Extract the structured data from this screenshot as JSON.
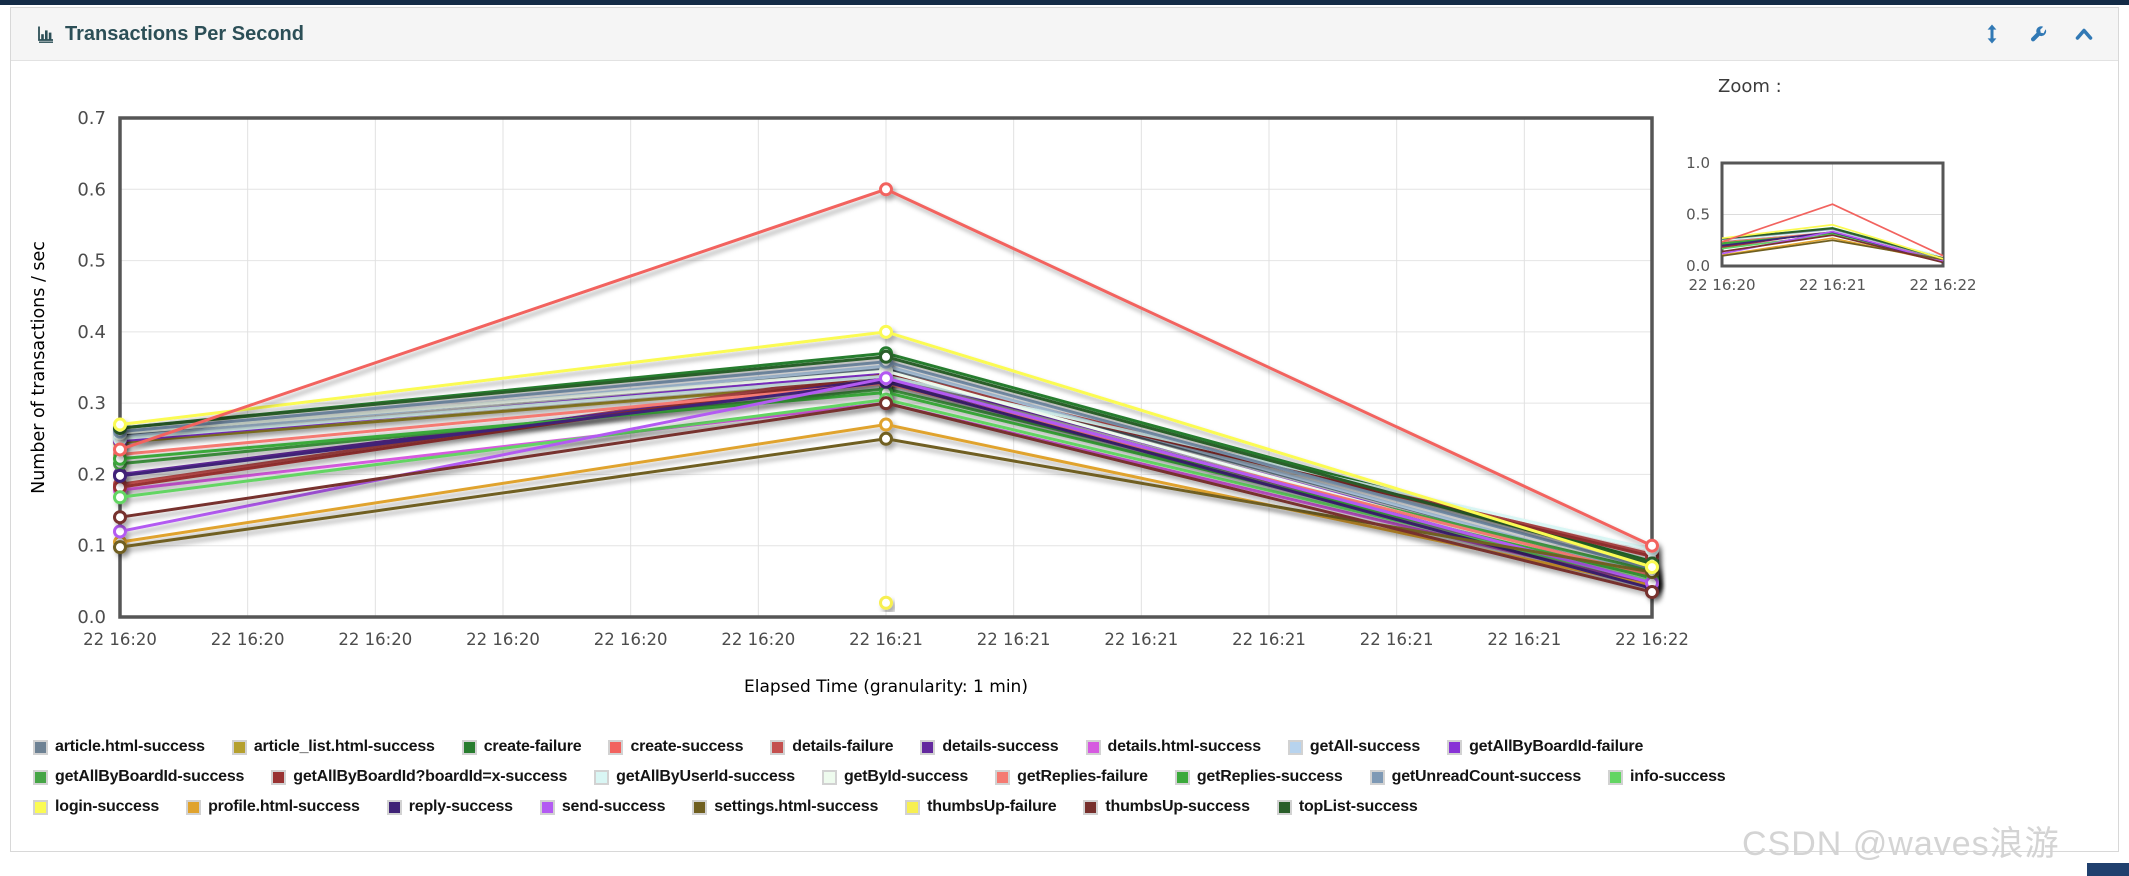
{
  "header": {
    "title": "Transactions Per Second"
  },
  "zoom_panel": {
    "label": "Zoom :",
    "ylim": [
      0,
      1.0
    ],
    "y_ticks": [
      "0.0",
      "0.5",
      "1.0"
    ],
    "x_tick_labels": [
      "22 16:20",
      "22 16:21",
      "22 16:22"
    ]
  },
  "chart_data": {
    "type": "line",
    "title": "Transactions Per Second",
    "xlabel": "Elapsed Time (granularity: 1 min)",
    "ylabel": "Number of transactions / sec",
    "ylim": [
      0,
      0.7
    ],
    "y_ticks": [
      "0.0",
      "0.1",
      "0.2",
      "0.3",
      "0.4",
      "0.5",
      "0.6",
      "0.7"
    ],
    "x_tick_labels": [
      "22 16:20",
      "22 16:20",
      "22 16:20",
      "22 16:20",
      "22 16:20",
      "22 16:20",
      "22 16:21",
      "22 16:21",
      "22 16:21",
      "22 16:21",
      "22 16:21",
      "22 16:21",
      "22 16:22"
    ],
    "x_points": [
      "22 16:20",
      "22 16:21",
      "22 16:22"
    ],
    "grid": true,
    "legend_position": "bottom",
    "legend_row_counts": [
      9,
      8,
      8
    ],
    "series": [
      {
        "name": "article.html-success",
        "color": "#6e8294",
        "values": [
          0.255,
          0.348,
          0.06
        ]
      },
      {
        "name": "article_list.html-success",
        "color": "#b5a02e",
        "values": [
          0.245,
          0.332,
          0.05
        ]
      },
      {
        "name": "create-failure",
        "color": "#287d2f",
        "values": [
          0.265,
          0.37,
          0.078
        ]
      },
      {
        "name": "create-success",
        "color": "#f2635f",
        "values": [
          0.235,
          0.6,
          0.1
        ]
      },
      {
        "name": "details-failure",
        "color": "#c4504f",
        "values": [
          0.186,
          0.344,
          0.088
        ]
      },
      {
        "name": "details-success",
        "color": "#63299e",
        "values": [
          0.2,
          0.334,
          0.05
        ]
      },
      {
        "name": "details.html-success",
        "color": "#d65ae0",
        "values": [
          0.178,
          0.3,
          0.045
        ]
      },
      {
        "name": "getAll-success",
        "color": "#b7d3ee",
        "values": [
          0.252,
          0.352,
          0.06
        ]
      },
      {
        "name": "getAllByBoardId-failure",
        "color": "#8833d6",
        "values": [
          0.247,
          0.342,
          0.054
        ]
      },
      {
        "name": "getAllByBoardId-success",
        "color": "#46a546",
        "values": [
          0.215,
          0.32,
          0.065
        ]
      },
      {
        "name": "getAllByBoardId?boardId=x-success",
        "color": "#993333",
        "values": [
          0.182,
          0.34,
          0.085
        ]
      },
      {
        "name": "getAllByUserId-success",
        "color": "#d9f6f4",
        "values": [
          0.25,
          0.338,
          0.095
        ]
      },
      {
        "name": "getById-success",
        "color": "#eefbee",
        "values": [
          0.258,
          0.345,
          0.05
        ]
      },
      {
        "name": "getReplies-failure",
        "color": "#f57a72",
        "values": [
          0.228,
          0.328,
          0.058
        ]
      },
      {
        "name": "getReplies-success",
        "color": "#3ba93b",
        "values": [
          0.222,
          0.315,
          0.055
        ]
      },
      {
        "name": "getUnreadCount-success",
        "color": "#7e99b5",
        "values": [
          0.26,
          0.358,
          0.068
        ]
      },
      {
        "name": "info-success",
        "color": "#63d563",
        "values": [
          0.168,
          0.305,
          0.05
        ]
      },
      {
        "name": "login-success",
        "color": "#fbfb53",
        "values": [
          0.27,
          0.4,
          0.07
        ]
      },
      {
        "name": "profile.html-success",
        "color": "#e0a32e",
        "values": [
          0.105,
          0.27,
          0.044
        ]
      },
      {
        "name": "reply-success",
        "color": "#3f2377",
        "values": [
          0.198,
          0.33,
          0.04
        ]
      },
      {
        "name": "send-success",
        "color": "#b35af2",
        "values": [
          0.12,
          0.335,
          0.048
        ]
      },
      {
        "name": "settings.html-success",
        "color": "#6f5f20",
        "values": [
          0.098,
          0.25,
          0.063
        ]
      },
      {
        "name": "thumbsUp-failure",
        "color": "#f7ef51",
        "values": [
          null,
          0.02,
          null
        ]
      },
      {
        "name": "thumbsUp-success",
        "color": "#77302d",
        "values": [
          0.14,
          0.3,
          0.035
        ]
      },
      {
        "name": "topList-success",
        "color": "#2a5e2a",
        "values": [
          0.265,
          0.365,
          0.075
        ]
      }
    ]
  },
  "watermark": "CSDN @waves浪游",
  "ui_colors": {
    "accent_blue": "#3179b5",
    "title_teal": "#2c4f57",
    "top_strip": "#142c47",
    "plot_border": "#565656"
  }
}
